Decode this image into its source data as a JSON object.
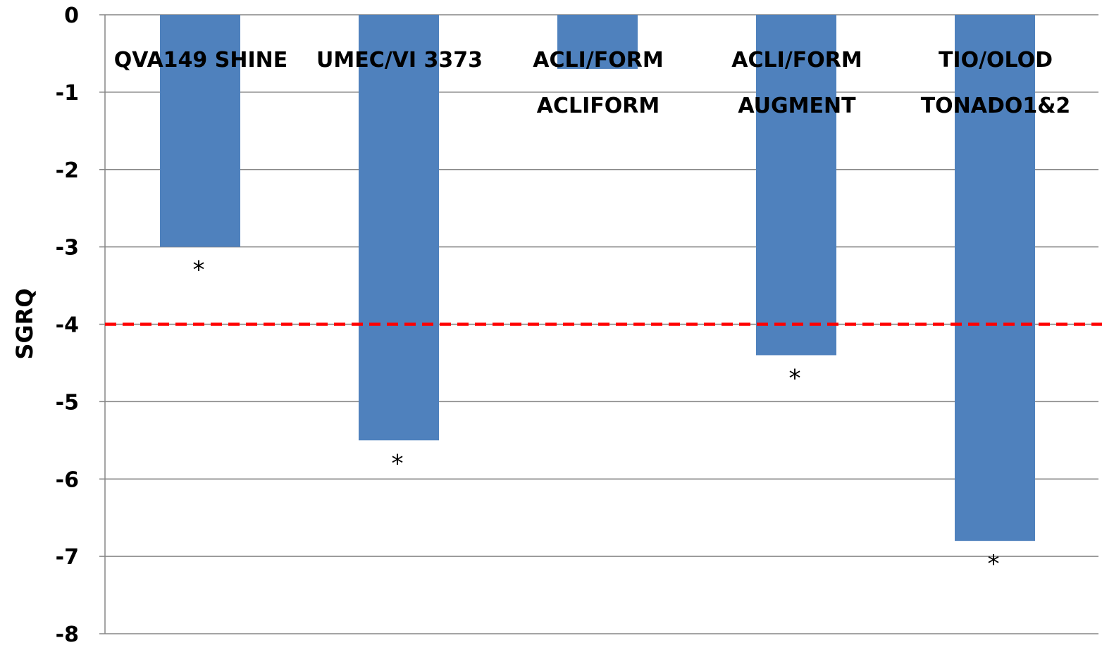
{
  "chart_data": {
    "type": "bar",
    "categories": [
      [
        "QVA149 SHINE"
      ],
      [
        "UMEC/VI 3373"
      ],
      [
        "ACLI/FORM",
        "ACLIFORM"
      ],
      [
        "ACLI/FORM",
        "AUGMENT"
      ],
      [
        "TIO/OLOD",
        "TONADO1&2"
      ]
    ],
    "values": [
      -3.0,
      -5.5,
      -0.7,
      -4.4,
      -6.8
    ],
    "significance_markers": [
      "*",
      "*",
      "",
      "*",
      "*"
    ],
    "ylabel": "SGRQ",
    "ylim": [
      -8,
      0
    ],
    "yticks": [
      "0",
      "-1",
      "-2",
      "-3",
      "-4",
      "-5",
      "-6",
      "-7",
      "-8"
    ],
    "grid": true,
    "reference_line": {
      "value": -4,
      "style": "dashed",
      "color": "#ff0000"
    },
    "colors": {
      "bar": "#4f81bd",
      "grid": "#868686",
      "reference": "#ff0000"
    }
  }
}
